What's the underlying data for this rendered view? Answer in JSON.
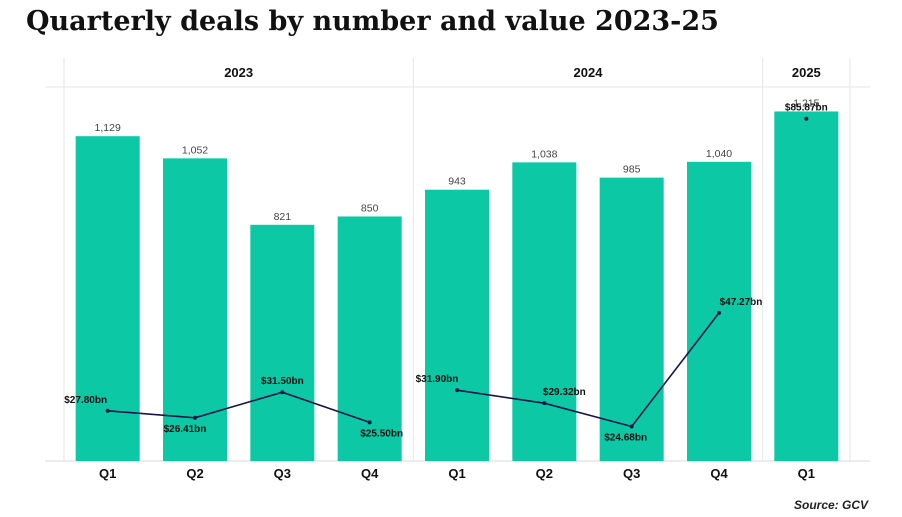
{
  "title": "Quarterly deals by number and value 2023-25",
  "source": "Source: GCV",
  "colors": {
    "bar": "#0cc8a4",
    "line": "#16164a",
    "grid": "#e6e6e6",
    "text": "#111111"
  },
  "chart_data": {
    "type": "bar",
    "groups": [
      {
        "label": "2023",
        "categories": [
          "Q1",
          "Q2",
          "Q3",
          "Q4"
        ]
      },
      {
        "label": "2024",
        "categories": [
          "Q1",
          "Q2",
          "Q3",
          "Q4"
        ]
      },
      {
        "label": "2025",
        "categories": [
          "Q1"
        ]
      }
    ],
    "categories": [
      "Q1",
      "Q2",
      "Q3",
      "Q4",
      "Q1",
      "Q2",
      "Q3",
      "Q4",
      "Q1"
    ],
    "series": [
      {
        "type": "bar",
        "values": [
          1129,
          1052,
          821,
          850,
          943,
          1038,
          985,
          1040,
          1215
        ],
        "labels": [
          "1,129",
          "1,052",
          "821",
          "850",
          "943",
          "1,038",
          "985",
          "1,040",
          "1,215"
        ]
      },
      {
        "type": "line",
        "values": [
          27.8,
          26.41,
          31.5,
          25.5,
          31.9,
          29.32,
          24.68,
          47.27,
          85.87
        ],
        "labels": [
          "$27.80bn",
          "$26.41bn",
          "$31.50bn",
          "$25.50bn",
          "$31.90bn",
          "$29.32bn",
          "$24.68bn",
          "$47.27bn",
          "$85.87bn"
        ]
      }
    ],
    "ylim_bars": [
      0,
      1300
    ],
    "ylim_line": [
      21,
      89
    ],
    "grid": true
  }
}
